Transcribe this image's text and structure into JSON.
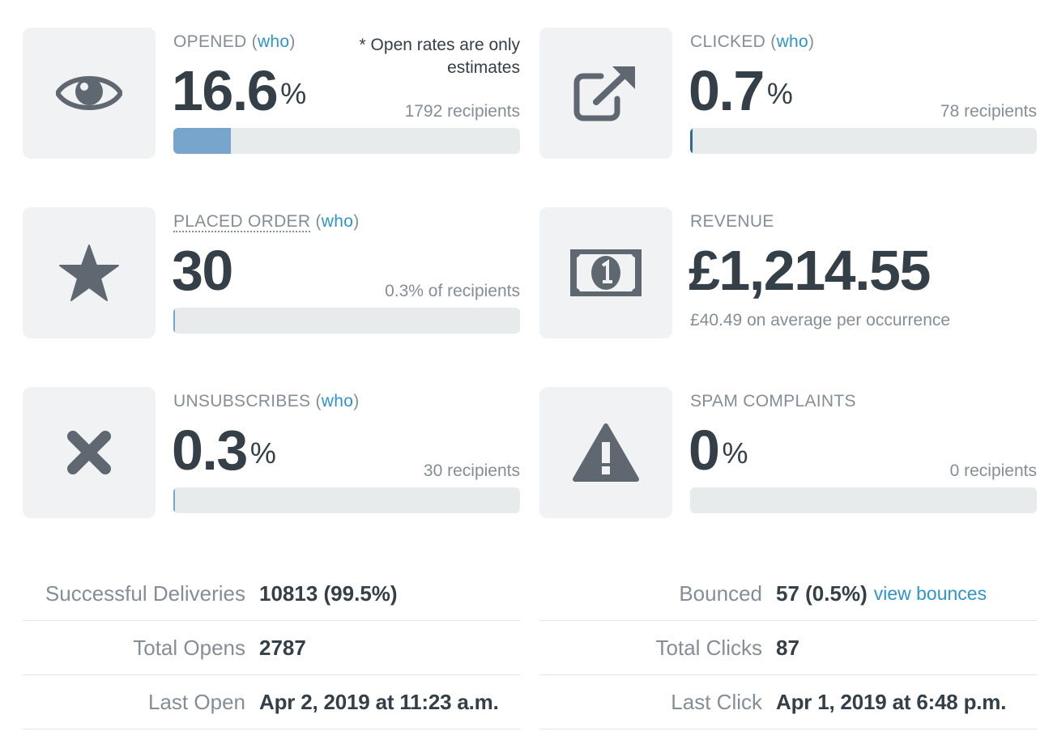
{
  "cards": {
    "opened": {
      "label": "OPENED",
      "paren_open": "(",
      "who": "who",
      "paren_close": ")",
      "value": "16.6",
      "unit": "%",
      "note": "* Open rates are only estimates",
      "sub": "1792 recipients",
      "bar_fraction": 0.166,
      "icon": "eye-icon"
    },
    "clicked": {
      "label": "CLICKED",
      "paren_open": "(",
      "who": "who",
      "paren_close": ")",
      "value": "0.7",
      "unit": "%",
      "sub": "78 recipients",
      "bar_fraction": 0.007,
      "icon": "external-link-icon"
    },
    "placed_order": {
      "label": "PLACED ORDER",
      "paren_open": "(",
      "who": "who",
      "paren_close": ")",
      "value": "30",
      "sub": "0.3% of recipients",
      "bar_fraction": 0.003,
      "icon": "star-icon"
    },
    "revenue": {
      "label": "REVENUE",
      "value": "£1,214.55",
      "sub": "£40.49 on average per occurrence",
      "icon": "money-icon"
    },
    "unsubscribes": {
      "label": "UNSUBSCRIBES",
      "paren_open": "(",
      "who": "who",
      "paren_close": ")",
      "value": "0.3",
      "unit": "%",
      "sub": "30 recipients",
      "bar_fraction": 0.003,
      "icon": "x-icon"
    },
    "spam": {
      "label": "SPAM COMPLAINTS",
      "value": "0",
      "unit": "%",
      "sub": "0 recipients",
      "bar_fraction": 0,
      "icon": "warning-icon"
    }
  },
  "stats_left": [
    {
      "key": "Successful Deliveries",
      "value": "10813 (99.5%)"
    },
    {
      "key": "Total Opens",
      "value": "2787"
    },
    {
      "key": "Last Open",
      "value": "Apr 2, 2019 at 11:23 a.m."
    }
  ],
  "stats_right": [
    {
      "key": "Bounced",
      "value": "57 (0.5%)",
      "link": "view bounces"
    },
    {
      "key": "Total Clicks",
      "value": "87"
    },
    {
      "key": "Last Click",
      "value": "Apr 1, 2019 at 6:48 p.m."
    }
  ],
  "colors": {
    "icon": "#5f6770",
    "link": "#2d95c9",
    "bar_fill": "#77a5cb",
    "bar_track": "#e8ebec"
  }
}
